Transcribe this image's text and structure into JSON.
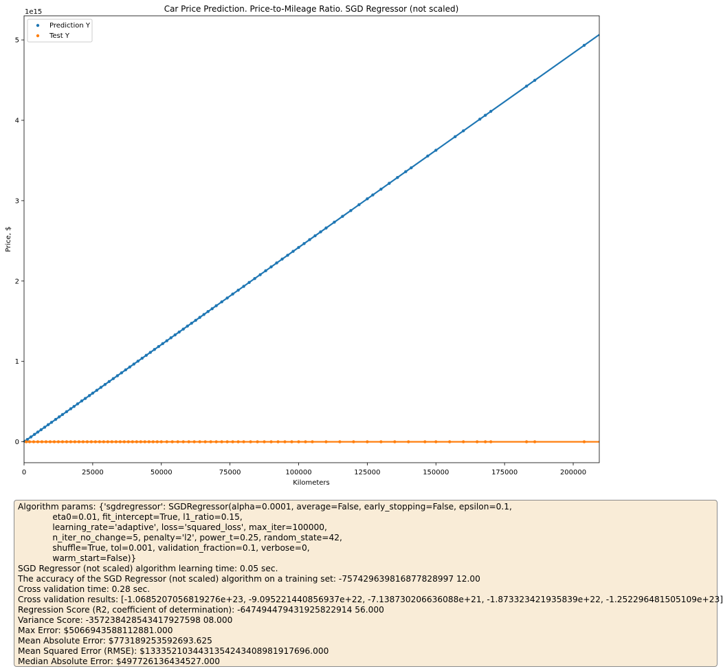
{
  "chart_data": {
    "type": "scatter",
    "title": "Car Price Prediction. Price-to-Mileage Ratio. SGD Regressor (not scaled)",
    "xlabel": "Kilometers",
    "ylabel": "Price, $",
    "y_offset_label": "1e15",
    "xlim": [
      0,
      209500
    ],
    "ylim": [
      -0.26,
      5.3
    ],
    "x_ticks": [
      0,
      25000,
      50000,
      75000,
      100000,
      125000,
      150000,
      175000,
      200000
    ],
    "x_tick_labels": [
      "0",
      "25000",
      "50000",
      "75000",
      "100000",
      "125000",
      "150000",
      "175000",
      "200000"
    ],
    "y_ticks": [
      0,
      1,
      2,
      3,
      4,
      5
    ],
    "y_tick_labels": [
      "0",
      "1",
      "2",
      "3",
      "4",
      "5"
    ],
    "grid": false,
    "legend_position": "top-left",
    "series": [
      {
        "name": "Prediction Y",
        "color": "#1f77b4",
        "slope_per_km": 2.418e-05,
        "x": [
          300,
          1200,
          2500,
          3800,
          5000,
          6200,
          7500,
          8800,
          10000,
          11500,
          12800,
          14000,
          15500,
          17000,
          18200,
          19500,
          21000,
          22300,
          23800,
          25000,
          26500,
          28000,
          29500,
          31000,
          32500,
          34000,
          35500,
          37000,
          38500,
          40000,
          41500,
          43000,
          44500,
          46000,
          47500,
          49000,
          50500,
          52000,
          53500,
          55000,
          56500,
          58000,
          59500,
          61000,
          62500,
          64000,
          65500,
          67000,
          68500,
          70000,
          72000,
          74000,
          76000,
          78000,
          80000,
          82000,
          84000,
          86000,
          88000,
          90000,
          92000,
          94000,
          96000,
          98000,
          100000,
          102000,
          104000,
          106000,
          108000,
          110000,
          113000,
          116000,
          119000,
          122000,
          125000,
          127000,
          130000,
          133000,
          136000,
          139000,
          141000,
          147000,
          150000,
          157000,
          160000,
          166000,
          168000,
          170000,
          183000,
          186000,
          204000
        ],
        "y": [
          0.007,
          0.029,
          0.06,
          0.092,
          0.121,
          0.15,
          0.181,
          0.213,
          0.242,
          0.278,
          0.31,
          0.339,
          0.375,
          0.411,
          0.44,
          0.472,
          0.508,
          0.539,
          0.575,
          0.605,
          0.641,
          0.677,
          0.713,
          0.75,
          0.786,
          0.822,
          0.858,
          0.895,
          0.931,
          0.967,
          1.003,
          1.04,
          1.076,
          1.112,
          1.149,
          1.185,
          1.221,
          1.257,
          1.294,
          1.33,
          1.366,
          1.402,
          1.439,
          1.475,
          1.511,
          1.548,
          1.584,
          1.62,
          1.656,
          1.693,
          1.741,
          1.789,
          1.838,
          1.886,
          1.934,
          1.983,
          2.031,
          2.079,
          2.128,
          2.176,
          2.225,
          2.273,
          2.321,
          2.37,
          2.418,
          2.466,
          2.515,
          2.563,
          2.611,
          2.66,
          2.732,
          2.805,
          2.877,
          2.95,
          3.023,
          3.071,
          3.143,
          3.216,
          3.288,
          3.361,
          3.409,
          3.555,
          3.627,
          3.796,
          3.869,
          4.014,
          4.062,
          4.111,
          4.425,
          4.497,
          4.933
        ]
      },
      {
        "name": "Test Y",
        "color": "#ff7f0e",
        "x": [
          800,
          2000,
          3500,
          5000,
          6500,
          8000,
          9500,
          11000,
          12500,
          14000,
          15500,
          17000,
          18500,
          20000,
          21500,
          23000,
          24500,
          26000,
          27500,
          29000,
          30500,
          32000,
          33500,
          35000,
          36500,
          38000,
          39500,
          41000,
          42500,
          44000,
          45500,
          47000,
          48500,
          50000,
          52000,
          54000,
          56000,
          58000,
          60000,
          62000,
          64000,
          66000,
          68000,
          70000,
          72000,
          74000,
          76000,
          78000,
          80000,
          82500,
          85000,
          87500,
          90000,
          92500,
          95000,
          97500,
          100000,
          102500,
          105000,
          110000,
          115000,
          120000,
          125000,
          130000,
          135000,
          140000,
          146000,
          150000,
          155000,
          160000,
          165000,
          168000,
          170000,
          183000,
          186000,
          204000
        ],
        "y": [
          0.0,
          0.0,
          0.0,
          0.0,
          0.0,
          0.0,
          0.0,
          0.0,
          0.0,
          0.0,
          0.0,
          0.0,
          0.0,
          0.0,
          0.0,
          0.0,
          0.0,
          0.0,
          0.0,
          0.0,
          0.0,
          0.0,
          0.0,
          0.0,
          0.0,
          0.0,
          0.0,
          0.0,
          0.0,
          0.0,
          0.0,
          0.0,
          0.0,
          0.0,
          0.0,
          0.0,
          0.0,
          0.0,
          0.0,
          0.0,
          0.0,
          0.0,
          0.0,
          0.0,
          0.0,
          0.0,
          0.0,
          0.0,
          0.0,
          0.0,
          0.0,
          0.0,
          0.0,
          0.0,
          0.0,
          0.0,
          0.0,
          0.0,
          0.0,
          0.0,
          0.0,
          0.0,
          0.0,
          0.0,
          0.0,
          0.0,
          0.0,
          0.0,
          0.0,
          0.0,
          0.0,
          0.0,
          0.0,
          0.0,
          0.0,
          0.0
        ]
      }
    ]
  },
  "info_box": {
    "lines": [
      "Algorithm params: {'sgdregressor': SGDRegressor(alpha=0.0001, average=False, early_stopping=False, epsilon=0.1,",
      "             eta0=0.01, fit_intercept=True, l1_ratio=0.15,",
      "             learning_rate='adaptive', loss='squared_loss', max_iter=100000,",
      "             n_iter_no_change=5, penalty='l2', power_t=0.25, random_state=42,",
      "             shuffle=True, tol=0.001, validation_fraction=0.1, verbose=0,",
      "             warm_start=False)}",
      "SGD Regressor (not scaled) algorithm learning time: 0.05 sec.",
      "The accuracy of the SGD Regressor (not scaled) algorithm on a training set: -757429639816877828997 12.00",
      "Cross validation time: 0.28 sec.",
      "Cross validation results: [-1.0685207056819276e+23, -9.095221440856937e+22, -7.138730206636088e+21, -1.873323421935839e+22, -1.252296481505109e+23]",
      "Regression Score (R2, coefficient of determination): -647494479431925822914 56.000",
      "Variance Score: -357238428543417927598 08.000",
      "Max Error: $5066943588112881.000",
      "Mean Absolute Error: $773189253592693.625",
      "Mean Squared Error (RMSE): $1333521034431354243408981917696.000",
      "Median Absolute Error: $497726136434527.000"
    ]
  }
}
